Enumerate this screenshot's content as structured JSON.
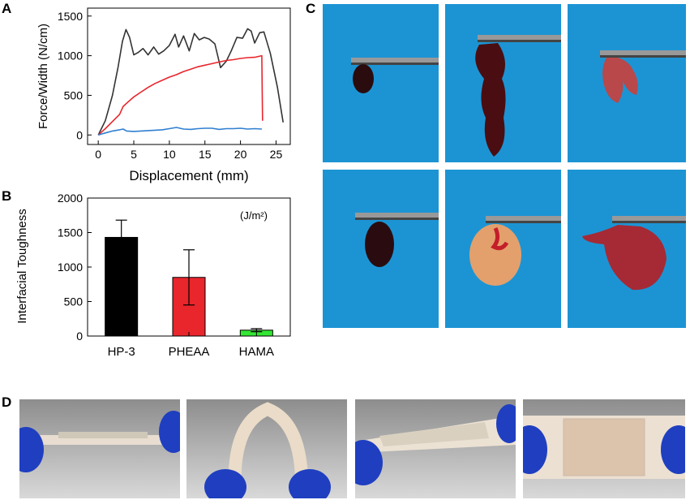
{
  "panels": {
    "a": "A",
    "b": "B",
    "c": "C",
    "d": "D"
  },
  "chart_data": [
    {
      "type": "line",
      "xlabel": "Displacement (mm)",
      "ylabel": "Force/Width (N/cm)",
      "xlim": [
        -1.5,
        27
      ],
      "ylim": [
        -120,
        1600
      ],
      "xticks": [
        0,
        5,
        10,
        15,
        20,
        25
      ],
      "yticks": [
        0,
        500,
        1000,
        1500
      ],
      "series": [
        {
          "color": "#333333",
          "x": [
            0,
            1,
            2,
            2.8,
            3.4,
            3.9,
            4.4,
            5,
            5.6,
            6.3,
            7,
            7.8,
            8.5,
            9.2,
            10,
            10.8,
            11.3,
            12,
            12.8,
            13.5,
            14.2,
            14.9,
            15.6,
            16.4,
            17.2,
            18,
            18.7,
            19.5,
            20.3,
            21,
            21.5,
            22,
            22.7,
            23.3,
            24.2,
            25.2,
            26
          ],
          "y": [
            0,
            180,
            500,
            860,
            1180,
            1330,
            1230,
            1010,
            1040,
            1090,
            1010,
            1110,
            1020,
            1060,
            1130,
            1270,
            1110,
            1250,
            1060,
            1280,
            1200,
            1230,
            1210,
            1150,
            850,
            930,
            1060,
            1230,
            1220,
            1340,
            1310,
            1160,
            1290,
            1300,
            1030,
            600,
            160
          ]
        },
        {
          "color": "#e8262c",
          "x": [
            0,
            1,
            2,
            3,
            3.5,
            4,
            5,
            6,
            7,
            8,
            9,
            10,
            11,
            12,
            13,
            14,
            15,
            16,
            17,
            18,
            19,
            20,
            21,
            22,
            23,
            23.1
          ],
          "y": [
            0,
            80,
            170,
            260,
            360,
            400,
            480,
            540,
            600,
            650,
            690,
            730,
            760,
            800,
            830,
            860,
            880,
            900,
            920,
            940,
            950,
            965,
            975,
            980,
            1000,
            180
          ]
        },
        {
          "color": "#2f7fd0",
          "x": [
            0,
            1,
            2,
            3,
            3.5,
            4,
            5,
            6,
            7,
            8,
            9,
            10,
            11,
            12,
            13,
            14,
            15,
            16,
            17,
            18,
            19,
            20,
            21,
            22,
            23
          ],
          "y": [
            0,
            25,
            50,
            65,
            75,
            50,
            45,
            50,
            55,
            60,
            65,
            80,
            95,
            75,
            70,
            80,
            85,
            85,
            70,
            80,
            80,
            85,
            75,
            80,
            75
          ]
        }
      ]
    },
    {
      "type": "bar",
      "ylabel": "Interfacial Toughness",
      "unit_note": "(J/m²)",
      "categories": [
        "HP-3",
        "PHEAA",
        "HAMA"
      ],
      "values": [
        1430,
        850,
        85
      ],
      "errors": [
        250,
        400,
        22
      ],
      "colors": [
        "#000000",
        "#e8262c",
        "#33e633"
      ],
      "ylim": [
        0,
        2000
      ],
      "yticks": [
        0,
        500,
        1000,
        1500,
        2000
      ]
    }
  ]
}
